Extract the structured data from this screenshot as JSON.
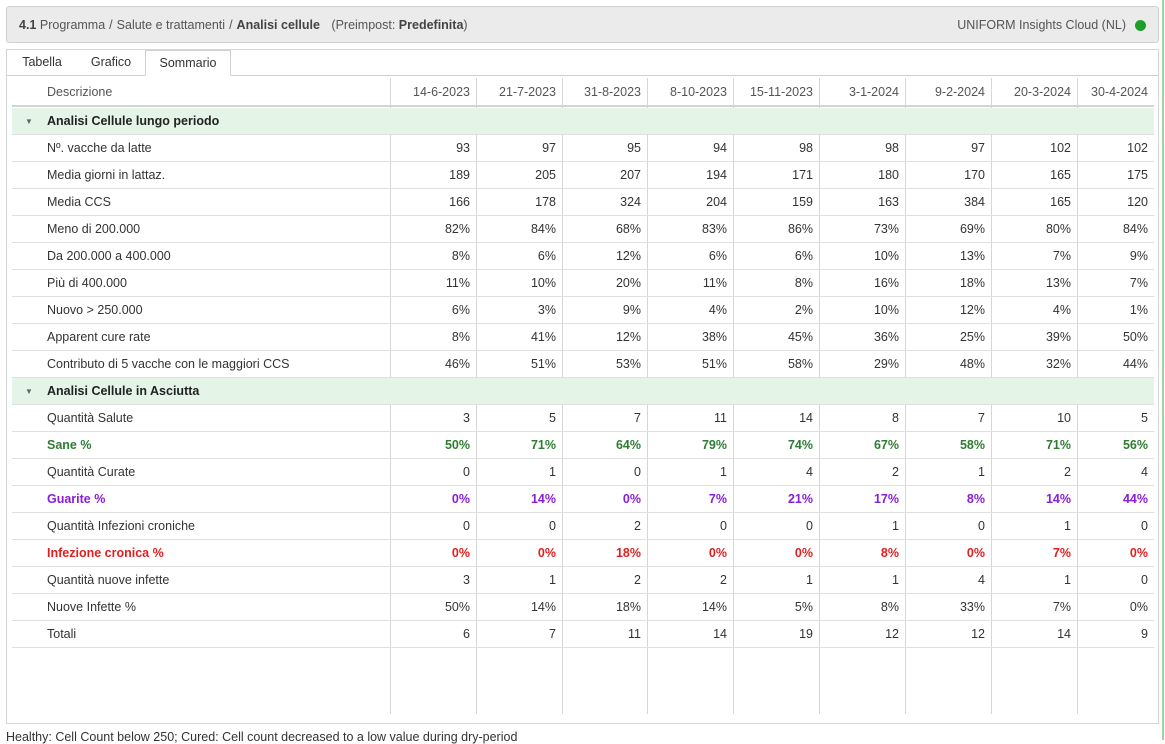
{
  "header": {
    "section_number": "4.1",
    "crumb_1": "Programma",
    "crumb_2": "Salute e trattamenti",
    "current": "Analisi cellule",
    "preset_prefix": "(Preimpost:",
    "preset_value": "Predefinita",
    "preset_suffix": ")",
    "cloud_label": "UNIFORM Insights Cloud (NL)",
    "status_color": "#1f9d2a"
  },
  "tabs": [
    {
      "label": "Tabella",
      "active": false
    },
    {
      "label": "Grafico",
      "active": false
    },
    {
      "label": "Sommario",
      "active": true
    }
  ],
  "table": {
    "description_header": "Descrizione",
    "dates": [
      "14-6-2023",
      "21-7-2023",
      "31-8-2023",
      "8-10-2023",
      "15-11-2023",
      "3-1-2024",
      "9-2-2024",
      "20-3-2024",
      "30-4-2024"
    ],
    "rows": [
      {
        "kind": "group",
        "label": "Analisi Cellule lungo periodo",
        "icon": "collapse-caret-icon"
      },
      {
        "label": "Nº. vacche da latte",
        "values": [
          "93",
          "97",
          "95",
          "94",
          "98",
          "98",
          "97",
          "102",
          "102"
        ]
      },
      {
        "label": "Media giorni in lattaz.",
        "values": [
          "189",
          "205",
          "207",
          "194",
          "171",
          "180",
          "170",
          "165",
          "175"
        ]
      },
      {
        "label": "Media CCS",
        "values": [
          "166",
          "178",
          "324",
          "204",
          "159",
          "163",
          "384",
          "165",
          "120"
        ]
      },
      {
        "label": "Meno di 200.000",
        "values": [
          "82%",
          "84%",
          "68%",
          "83%",
          "86%",
          "73%",
          "69%",
          "80%",
          "84%"
        ]
      },
      {
        "label": "Da 200.000 a 400.000",
        "values": [
          "8%",
          "6%",
          "12%",
          "6%",
          "6%",
          "10%",
          "13%",
          "7%",
          "9%"
        ]
      },
      {
        "label": "Più di 400.000",
        "values": [
          "11%",
          "10%",
          "20%",
          "11%",
          "8%",
          "16%",
          "18%",
          "13%",
          "7%"
        ]
      },
      {
        "label": "Nuovo > 250.000",
        "values": [
          "6%",
          "3%",
          "9%",
          "4%",
          "2%",
          "10%",
          "12%",
          "4%",
          "1%"
        ]
      },
      {
        "label": "Apparent cure rate",
        "values": [
          "8%",
          "41%",
          "12%",
          "38%",
          "45%",
          "36%",
          "25%",
          "39%",
          "50%"
        ]
      },
      {
        "label": "Contributo di 5 vacche con le maggiori CCS",
        "values": [
          "46%",
          "51%",
          "53%",
          "51%",
          "58%",
          "29%",
          "48%",
          "32%",
          "44%"
        ]
      },
      {
        "kind": "group",
        "label": "Analisi Cellule in Asciutta",
        "icon": "collapse-caret-icon"
      },
      {
        "label": "Quantità Salute",
        "values": [
          "3",
          "5",
          "7",
          "11",
          "14",
          "8",
          "7",
          "10",
          "5"
        ]
      },
      {
        "label": "Sane %",
        "values": [
          "50%",
          "71%",
          "64%",
          "79%",
          "74%",
          "67%",
          "58%",
          "71%",
          "56%"
        ],
        "bold": true,
        "color": "#2e7d32"
      },
      {
        "label": "Quantità Curate",
        "values": [
          "0",
          "1",
          "0",
          "1",
          "4",
          "2",
          "1",
          "2",
          "4"
        ]
      },
      {
        "label": "Guarite %",
        "values": [
          "0%",
          "14%",
          "0%",
          "7%",
          "21%",
          "17%",
          "8%",
          "14%",
          "44%"
        ],
        "bold": true,
        "color": "#8a1ed6"
      },
      {
        "label": "Quantità Infezioni croniche",
        "values": [
          "0",
          "0",
          "2",
          "0",
          "0",
          "1",
          "0",
          "1",
          "0"
        ]
      },
      {
        "label": "Infezione cronica %",
        "values": [
          "0%",
          "0%",
          "18%",
          "0%",
          "0%",
          "8%",
          "0%",
          "7%",
          "0%"
        ],
        "bold": true,
        "color": "#e02020"
      },
      {
        "label": "Quantità nuove infette",
        "values": [
          "3",
          "1",
          "2",
          "2",
          "1",
          "1",
          "4",
          "1",
          "0"
        ]
      },
      {
        "label": "Nuove Infette %",
        "values": [
          "50%",
          "14%",
          "18%",
          "14%",
          "5%",
          "8%",
          "33%",
          "7%",
          "0%"
        ]
      },
      {
        "label": "Totali",
        "values": [
          "6",
          "7",
          "11",
          "14",
          "19",
          "12",
          "12",
          "14",
          "9"
        ]
      }
    ]
  },
  "footer_note": "Healthy: Cell Count below 250; Cured: Cell count decreased to a low value during dry-period"
}
